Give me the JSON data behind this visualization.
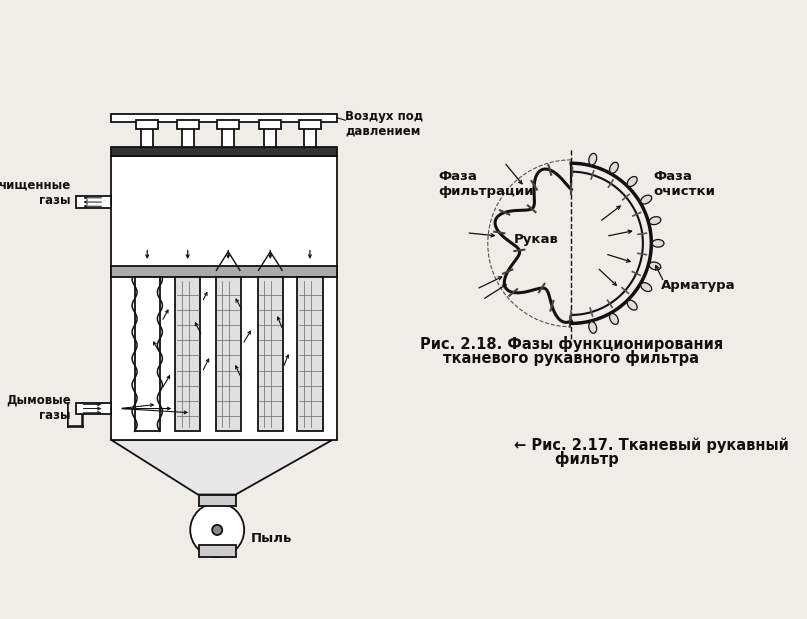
{
  "bg_color": "#f0ede8",
  "line_color": "#111111",
  "text_color": "#111111",
  "caption1_line1": "Рис. 2.18. Фазы функционирования",
  "caption1_line2": "тканевого рукавного фильтра",
  "caption2_line1": "← Рис. 2.17. Тканевый рукавный",
  "caption2_line2": "        фильтр",
  "label_vozduh": "Воздух под\nдавлением",
  "label_chistye": "чищенные\nгазы",
  "label_dymovye": "Дымовые\nгазы",
  "label_pyl": "Пыль",
  "label_rukav": "Рукав",
  "label_armatura": "Арматура",
  "label_faza_filt": "Фаза\nфильтрации",
  "label_faza_ochistki": "Фаза\nочистки"
}
